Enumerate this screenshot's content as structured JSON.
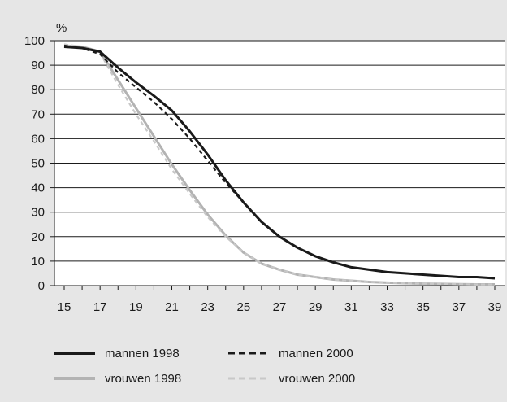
{
  "chart_data": {
    "type": "line",
    "title": "",
    "xlabel": "",
    "ylabel": "%",
    "xlim": [
      15,
      39
    ],
    "ylim": [
      0,
      100
    ],
    "x_ticks": [
      "15",
      "17",
      "19",
      "21",
      "23",
      "25",
      "27",
      "29",
      "31",
      "33",
      "35",
      "37",
      "39"
    ],
    "y_ticks": [
      "0",
      "10",
      "20",
      "30",
      "40",
      "50",
      "60",
      "70",
      "80",
      "90",
      "100"
    ],
    "grid": "horizontal",
    "legend_position": "bottom",
    "x": [
      15,
      16,
      17,
      18,
      19,
      20,
      21,
      22,
      23,
      24,
      25,
      26,
      27,
      28,
      29,
      30,
      31,
      32,
      33,
      34,
      35,
      36,
      37,
      38,
      39
    ],
    "series": [
      {
        "name": "mannen 1998",
        "color": "#1a1a1a",
        "dash": "solid",
        "values": [
          97.5,
          97,
          95.5,
          89,
          83,
          77.5,
          71.5,
          63,
          53.5,
          43,
          34,
          26,
          20,
          15.5,
          12,
          9.5,
          7.5,
          6.5,
          5.5,
          5,
          4.5,
          4,
          3.5,
          3.5,
          3
        ]
      },
      {
        "name": "mannen 2000",
        "color": "#1a1a1a",
        "dash": "dashed",
        "values": [
          98,
          97,
          94.5,
          87,
          81,
          75,
          68,
          60,
          51,
          42,
          34,
          26,
          20,
          15.5,
          12,
          9.5,
          7.5,
          6.5,
          5.5,
          5,
          4.5,
          4,
          3.5,
          3.5,
          3
        ]
      },
      {
        "name": "vrouwen 1998",
        "color": "#b3b3b3",
        "dash": "solid",
        "values": [
          98,
          97.5,
          95.5,
          84,
          72.5,
          61,
          49.5,
          39,
          29,
          20.5,
          13.5,
          9,
          6.5,
          4.5,
          3.5,
          2.5,
          2,
          1.5,
          1.2,
          1,
          0.8,
          0.7,
          0.6,
          0.5,
          0.5
        ]
      },
      {
        "name": "vrouwen 2000",
        "color": "#c8c8c8",
        "dash": "dashed",
        "values": [
          98.5,
          97.5,
          95,
          82,
          70,
          59,
          47.5,
          37.5,
          28,
          20,
          13.5,
          9,
          6.5,
          4.5,
          3.5,
          2.5,
          2,
          1.5,
          1.2,
          1,
          0.8,
          0.7,
          0.6,
          0.5,
          0.5
        ]
      }
    ]
  }
}
